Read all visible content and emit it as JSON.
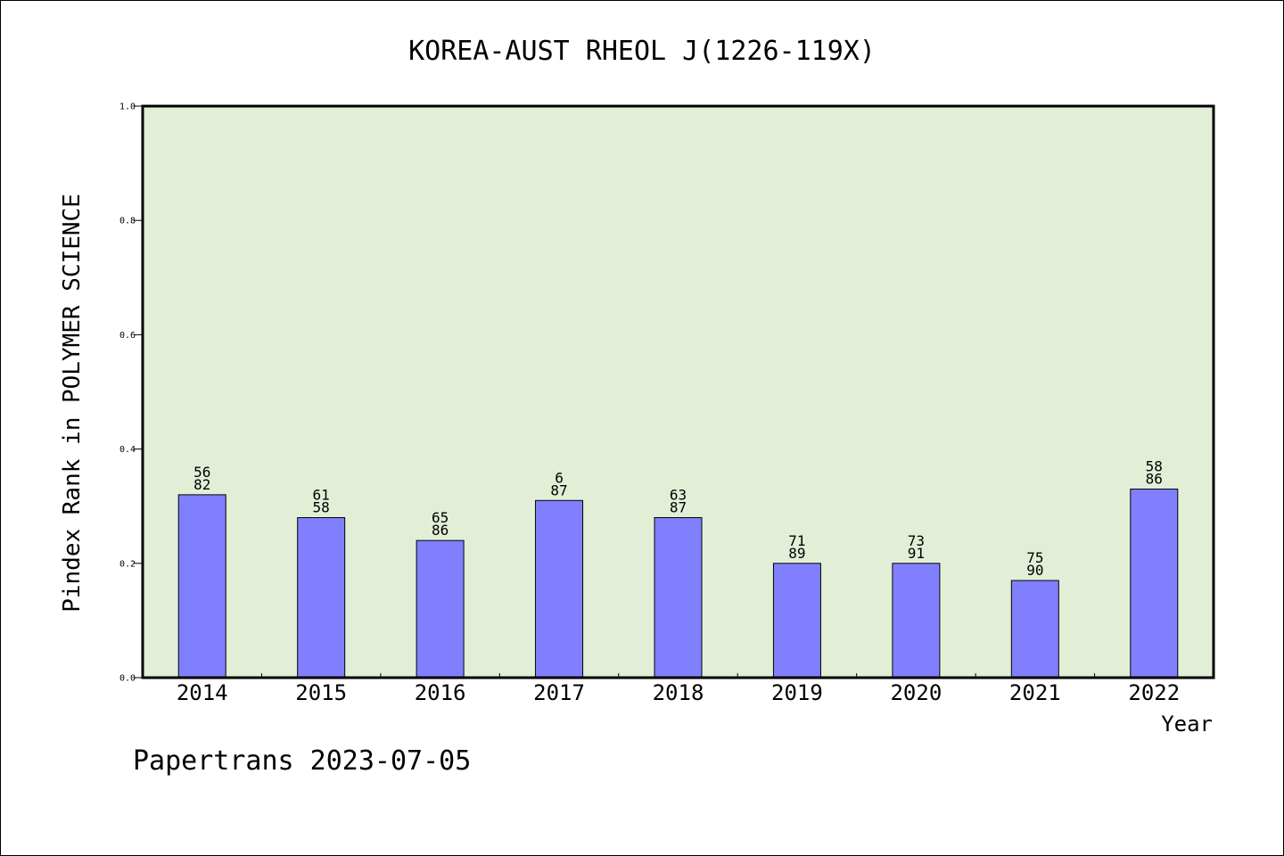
{
  "chart_data": {
    "type": "bar",
    "title": "KOREA-AUST RHEOL J(1226-119X)",
    "xlabel": "Year",
    "ylabel": "Pindex Rank in POLYMER SCIENCE",
    "categories": [
      "2014",
      "2015",
      "2016",
      "2017",
      "2018",
      "2019",
      "2020",
      "2021",
      "2022"
    ],
    "values": [
      0.32,
      0.28,
      0.24,
      0.31,
      0.28,
      0.2,
      0.2,
      0.17,
      0.33
    ],
    "bar_labels_top": [
      "56",
      "61",
      "65",
      "6",
      "63",
      "71",
      "73",
      "75",
      "58"
    ],
    "bar_labels_bottom": [
      "82",
      "58",
      "86",
      "87",
      "87",
      "89",
      "91",
      "90",
      "86"
    ],
    "ylim": [
      0,
      1.0
    ],
    "yticks": [
      "0.0",
      "0.2",
      "0.4",
      "0.6",
      "0.8",
      "1.0"
    ],
    "ytick_values": [
      0,
      0.2,
      0.4,
      0.6,
      0.8,
      1.0
    ],
    "grid": false,
    "colors": {
      "bar": "#8080ff",
      "plot_background": "#e2efd6",
      "axes": "#000000"
    }
  },
  "footer": {
    "text": "Papertrans 2023-07-05"
  }
}
